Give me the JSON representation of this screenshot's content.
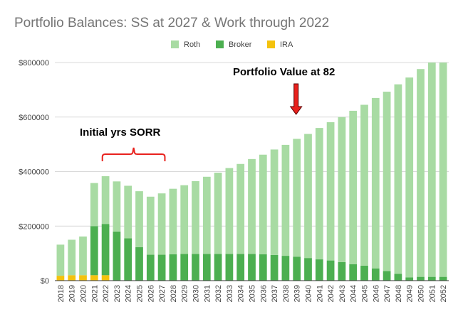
{
  "chart_data": {
    "type": "bar",
    "stacked": true,
    "title": "Portfolio Balances: SS at 2027 & Work through 2022",
    "xlabel": "",
    "ylabel": "",
    "ylim": [
      0,
      800000
    ],
    "yticks": [
      0,
      200000,
      400000,
      600000,
      800000
    ],
    "ytick_labels": [
      "$0",
      "$200000",
      "$400000",
      "$600000",
      "$800000"
    ],
    "grid": true,
    "legend_position": "top",
    "categories": [
      "2018",
      "2019",
      "2020",
      "2021",
      "2022",
      "2023",
      "2024",
      "2025",
      "2026",
      "2027",
      "2028",
      "2029",
      "2030",
      "2031",
      "2032",
      "2033",
      "2034",
      "2035",
      "2036",
      "2037",
      "2038",
      "2039",
      "2040",
      "2041",
      "2042",
      "2043",
      "2044",
      "2045",
      "2046",
      "2047",
      "2048",
      "2049",
      "2050",
      "2051",
      "2052"
    ],
    "series": [
      {
        "name": "IRA",
        "color": "#f4c20d",
        "values": [
          18000,
          20000,
          20000,
          20000,
          20000,
          0,
          0,
          0,
          0,
          0,
          0,
          0,
          0,
          0,
          0,
          0,
          0,
          0,
          0,
          0,
          0,
          0,
          0,
          0,
          0,
          0,
          0,
          0,
          0,
          0,
          0,
          0,
          0,
          0,
          0
        ]
      },
      {
        "name": "Broker",
        "color": "#4caf50",
        "values": [
          0,
          0,
          0,
          180000,
          188000,
          180000,
          155000,
          123000,
          95000,
          95000,
          97000,
          98000,
          98000,
          98000,
          98000,
          98000,
          98000,
          98000,
          97000,
          94000,
          91000,
          88000,
          83000,
          78000,
          74000,
          68000,
          60000,
          55000,
          45000,
          35000,
          25000,
          12000,
          14000,
          14000,
          14000
        ]
      },
      {
        "name": "Roth",
        "color": "#a8dba3",
        "values": [
          114000,
          130000,
          142000,
          158000,
          175000,
          184000,
          193000,
          205000,
          213000,
          225000,
          240000,
          252000,
          267000,
          283000,
          298000,
          315000,
          330000,
          348000,
          365000,
          387000,
          407000,
          432000,
          455000,
          482000,
          507000,
          532000,
          563000,
          590000,
          625000,
          658000,
          695000,
          733000,
          762000,
          786000,
          786000
        ]
      }
    ],
    "annotations": [
      {
        "text": "Initial yrs SORR",
        "type": "brace",
        "color": "#e8211d"
      },
      {
        "text": "Portfolio Value at 82",
        "type": "arrow",
        "color": "#e8211d"
      }
    ]
  }
}
